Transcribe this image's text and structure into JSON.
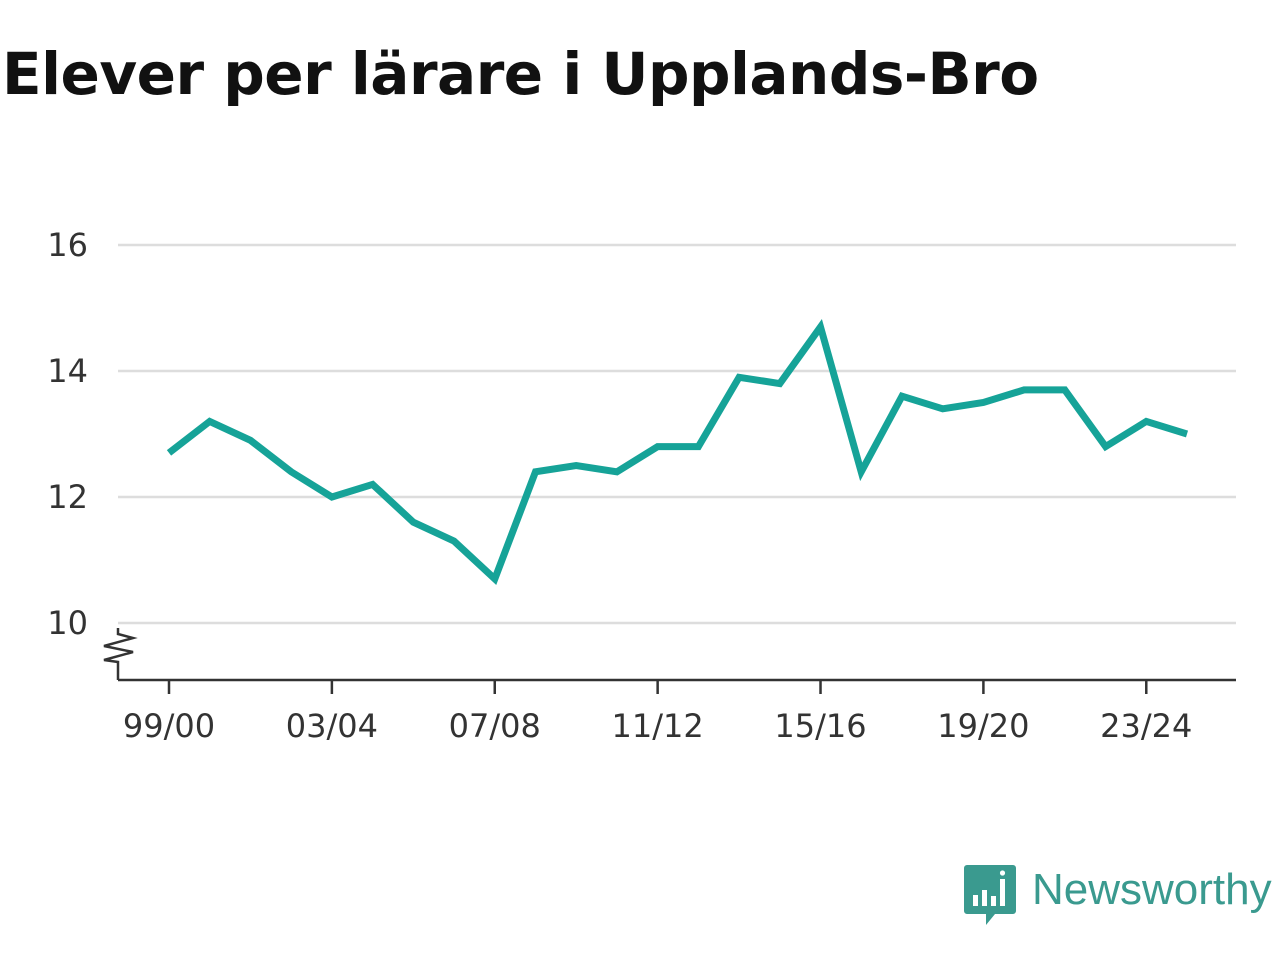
{
  "title": "Elever per lärare i Upplands-Bro",
  "brand": {
    "name": "Newsworthy",
    "icon": "newsworthy-logo-icon",
    "color": "#3a9a8f"
  },
  "colors": {
    "line": "#16a398",
    "grid": "#dddddd",
    "axis": "#333333"
  },
  "chart_data": {
    "type": "line",
    "title": "Elever per lärare i Upplands-Bro",
    "xlabel": "",
    "ylabel": "",
    "x": [
      "99/00",
      "00/01",
      "01/02",
      "02/03",
      "03/04",
      "04/05",
      "05/06",
      "06/07",
      "07/08",
      "08/09",
      "09/10",
      "10/11",
      "11/12",
      "12/13",
      "13/14",
      "14/15",
      "15/16",
      "16/17",
      "17/18",
      "18/19",
      "19/20",
      "20/21",
      "21/22",
      "22/23",
      "23/24",
      "24/25"
    ],
    "series": [
      {
        "values": [
          12.7,
          13.2,
          12.9,
          12.4,
          12.0,
          12.2,
          11.6,
          11.3,
          10.7,
          12.4,
          12.5,
          12.4,
          12.8,
          12.8,
          13.9,
          13.8,
          14.7,
          12.4,
          13.6,
          13.4,
          13.5,
          13.7,
          13.7,
          12.8,
          13.2,
          13.0
        ]
      }
    ],
    "x_tick_labels": [
      "99/00",
      "03/04",
      "07/08",
      "11/12",
      "15/16",
      "19/20",
      "23/24"
    ],
    "y_ticks": [
      10,
      12,
      14,
      16
    ],
    "ylim": [
      10,
      16
    ],
    "axis_break": true,
    "grid": true,
    "legend": "none"
  }
}
